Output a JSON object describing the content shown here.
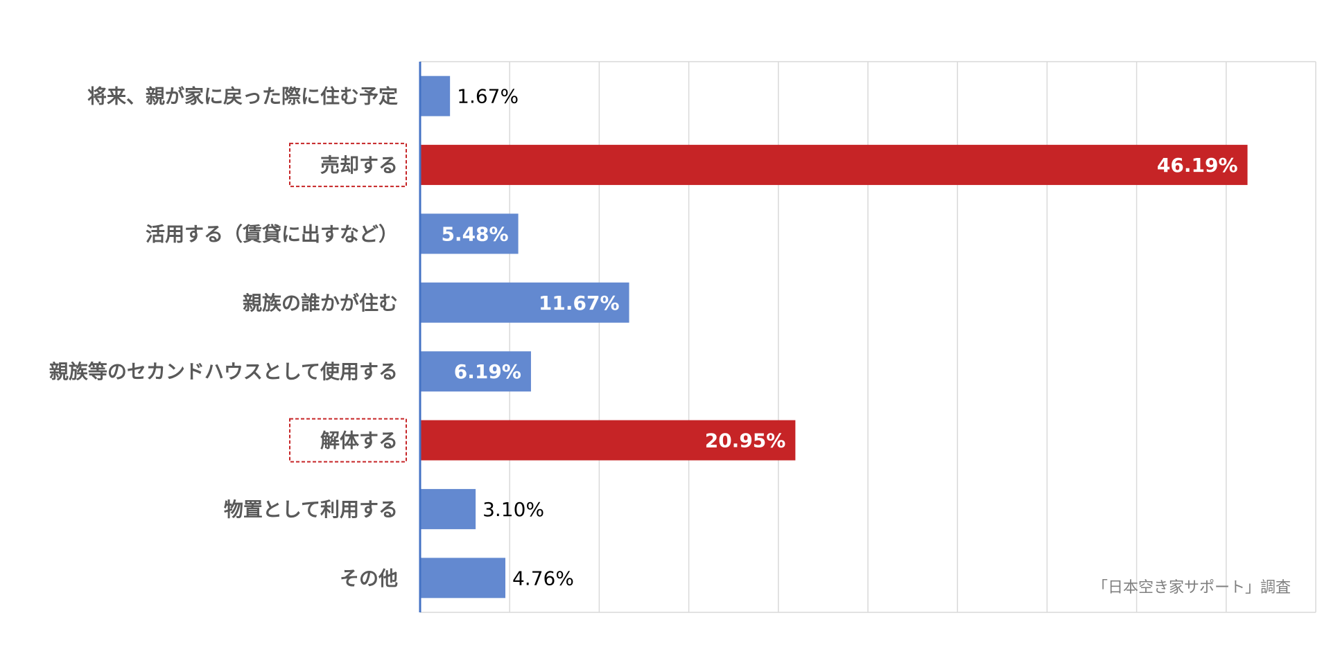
{
  "chart_data": {
    "type": "bar",
    "orientation": "horizontal",
    "categories": [
      "将来、親が家に戻った際に住む予定",
      "売却する",
      "活用する（賃貸に出すなど）",
      "親族の誰かが住む",
      "親族等のセカンドハウスとして使用する",
      "解体する",
      "物置として利用する",
      "その他"
    ],
    "values": [
      1.67,
      46.19,
      5.48,
      11.67,
      6.19,
      20.95,
      3.1,
      4.76
    ],
    "value_labels": [
      "1.67%",
      "46.19%",
      "5.48%",
      "11.67%",
      "6.19%",
      "20.95%",
      "3.10%",
      "4.76%"
    ],
    "highlighted": [
      false,
      true,
      false,
      false,
      false,
      true,
      false,
      false
    ],
    "xlim": [
      0,
      50
    ],
    "grid": true,
    "source": "「日本空き家サポート」調査"
  },
  "colors": {
    "bar_default": "#6389D0",
    "bar_highlight": "#C62426",
    "highlight_box": "#C62426",
    "gridline": "#D9D9D9",
    "axis": "#4472C4"
  }
}
